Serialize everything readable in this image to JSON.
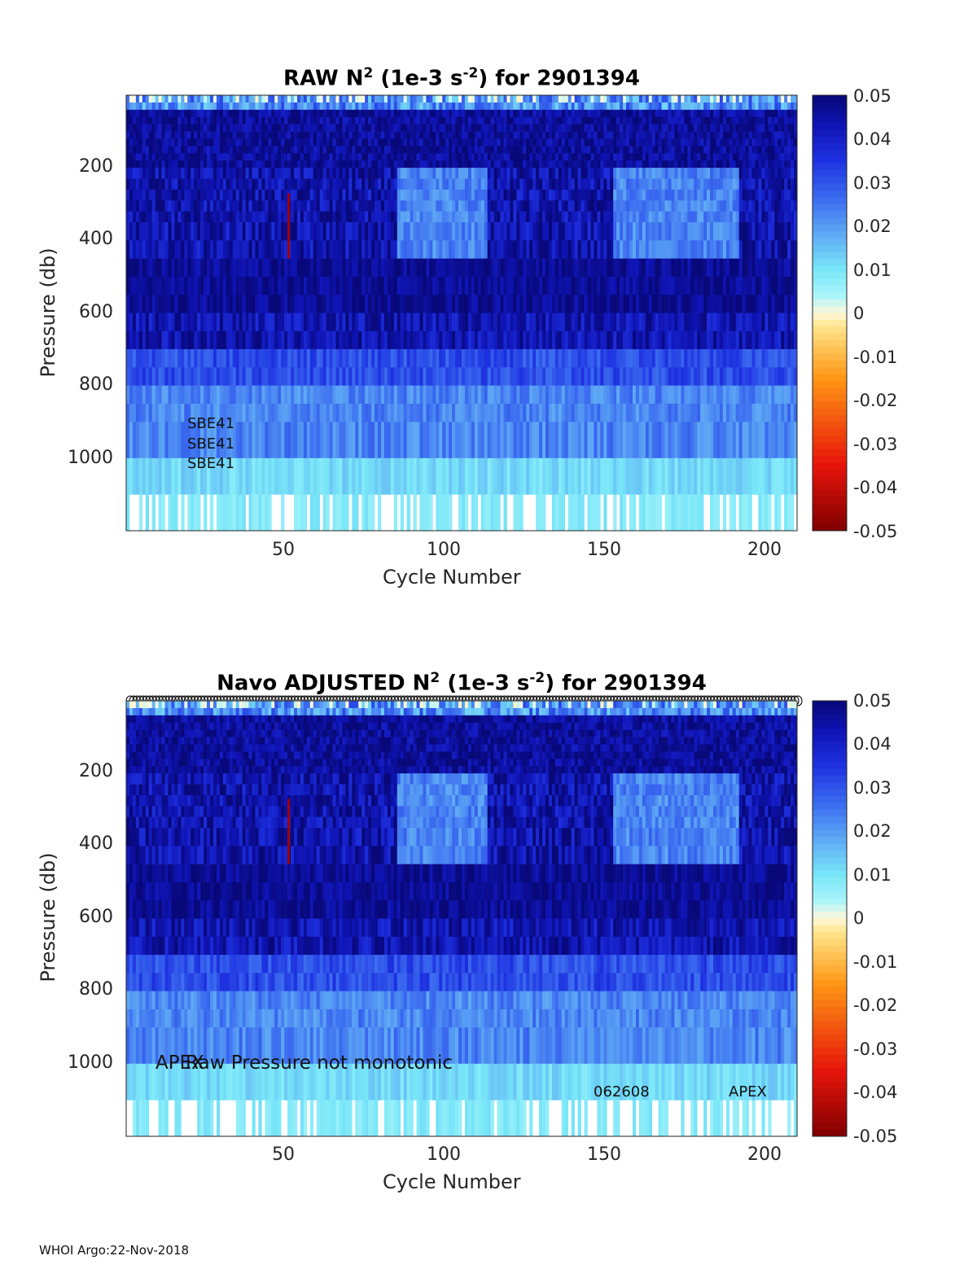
{
  "chart_data": [
    {
      "type": "heatmap",
      "title": "RAW N",
      "title_sup": "2",
      "title_mid": " (1e-3 s",
      "title_sup2": "-2",
      "title_end": ") for 2901394",
      "xlabel": "Cycle Number",
      "ylabel": "Pressure (db)",
      "xlim": [
        1,
        208
      ],
      "ylim": [
        1200,
        0
      ],
      "x_ticks": [
        50,
        100,
        150,
        200
      ],
      "y_ticks": [
        200,
        400,
        600,
        800,
        1000
      ],
      "colorbar": {
        "range": [
          -0.05,
          0.05
        ],
        "ticks": [
          "0.05",
          "0.04",
          "0.03",
          "0.02",
          "0.01",
          "0",
          "-0.01",
          "-0.02",
          "-0.03",
          "-0.04",
          "-0.05"
        ]
      },
      "annotations": [
        "SBE41",
        "SBE41",
        "SBE41"
      ],
      "marker_row": false
    },
    {
      "type": "heatmap",
      "title": "Navo  ADJUSTED N",
      "title_sup": "2",
      "title_mid": " (1e-3 s",
      "title_sup2": "-2",
      "title_end": ") for 2901394",
      "xlabel": "Cycle Number",
      "ylabel": "Pressure (db)",
      "xlim": [
        1,
        208
      ],
      "ylim": [
        1200,
        0
      ],
      "x_ticks": [
        50,
        100,
        150,
        200
      ],
      "y_ticks": [
        200,
        400,
        600,
        800,
        1000
      ],
      "colorbar": {
        "range": [
          -0.05,
          0.05
        ],
        "ticks": [
          "0.05",
          "0.04",
          "0.03",
          "0.02",
          "0.01",
          "0",
          "-0.01",
          "-0.02",
          "-0.03",
          "-0.04",
          "-0.05"
        ]
      },
      "annotations": [
        "APEX",
        "Raw Pressure not monotonic",
        "062608",
        "APEX"
      ],
      "marker_row": true
    }
  ],
  "footer": "WHOI Argo:22-Nov-2018",
  "colors": {
    "dark_navy": "#0a0a8c",
    "blue": "#1f2ee6",
    "mid_blue": "#3e6cf0",
    "light_blue": "#62a8f4",
    "cyan": "#7fe6f6",
    "zero_cream": "#fff4cc",
    "negative_red": "#a00000"
  }
}
